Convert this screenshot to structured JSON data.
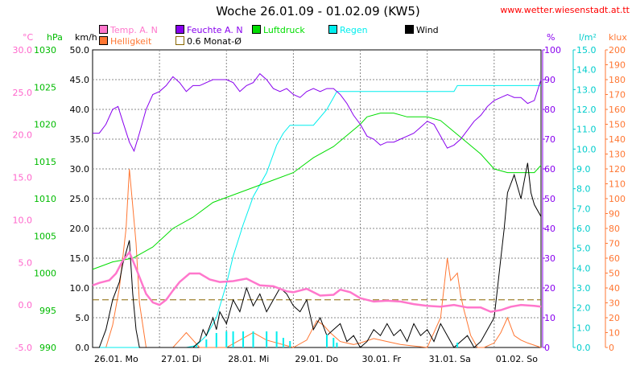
{
  "header": {
    "title": "Woche 26.01.09 - 01.02.09 (KW5)",
    "source": "www.wetter.wiesenstadt.at.tt"
  },
  "legend": [
    {
      "label": "Temp. A. N",
      "color": "#ff77cc",
      "border": "#000000"
    },
    {
      "label": "Feuchte A. N",
      "color": "#8800ee",
      "border": "#000000"
    },
    {
      "label": "Luftdruck",
      "color": "#00dd00",
      "border": "#000000"
    },
    {
      "label": "Regen",
      "color": "#00eeee",
      "border": "#000000"
    },
    {
      "label": "Wind",
      "color": "#000000",
      "border": "#000000"
    },
    {
      "label": "Helligkeit",
      "color": "#ff7733",
      "border": "#000000"
    },
    {
      "label": "0.6 Monat-Ø",
      "color": "#ffffff",
      "border": "#886600"
    }
  ],
  "chart_data": {
    "type": "line",
    "x_ticks": [
      "26.01. Mo",
      "27.01. Di",
      "28.01. Mi",
      "29.01. Do",
      "30.01. Fr",
      "31.01. Sa",
      "01.02. So"
    ],
    "axes": [
      {
        "unit": "°C",
        "color": "#ff66cc",
        "min": -5.0,
        "max": 30.0,
        "ticks": [
          "-5.0",
          "0.0",
          "5.0",
          "10.0",
          "15.0",
          "20.0",
          "25.0",
          "30.0"
        ],
        "tick_values": [
          -5,
          0,
          5,
          10,
          15,
          20,
          25,
          30
        ]
      },
      {
        "unit": "hPa",
        "color": "#00bb00",
        "min": 990,
        "max": 1030,
        "ticks": [
          "990",
          "995",
          "1000",
          "1005",
          "1010",
          "1015",
          "1020",
          "1025",
          "1030"
        ],
        "tick_values": [
          990,
          995,
          1000,
          1005,
          1010,
          1015,
          1020,
          1025,
          1030
        ]
      },
      {
        "unit": "km/h",
        "color": "#000000",
        "min": 0.0,
        "max": 50.0,
        "ticks": [
          "0.0",
          "5.0",
          "10.0",
          "15.0",
          "20.0",
          "25.0",
          "30.0",
          "35.0",
          "40.0",
          "45.0",
          "50.0"
        ],
        "tick_values": [
          0,
          5,
          10,
          15,
          20,
          25,
          30,
          35,
          40,
          45,
          50
        ]
      },
      {
        "unit": "%",
        "color": "#8800ee",
        "min": 0,
        "max": 100,
        "ticks": [
          "0",
          "10",
          "20",
          "30",
          "40",
          "50",
          "60",
          "70",
          "80",
          "90",
          "100"
        ],
        "tick_values": [
          0,
          10,
          20,
          30,
          40,
          50,
          60,
          70,
          80,
          90,
          100
        ]
      },
      {
        "unit": "l/m²",
        "color": "#00cccc",
        "min": 0.0,
        "max": 15.0,
        "ticks": [
          "0.0",
          "1.0",
          "2.0",
          "3.0",
          "4.0",
          "5.0",
          "6.0",
          "7.0",
          "8.0",
          "9.0",
          "10.0",
          "11.0",
          "12.0",
          "13.0",
          "14.0",
          "15.0"
        ],
        "tick_values": [
          0,
          1,
          2,
          3,
          4,
          5,
          6,
          7,
          8,
          9,
          10,
          11,
          12,
          13,
          14,
          15
        ]
      },
      {
        "unit": "klux",
        "color": "#ff7733",
        "min": 0,
        "max": 200,
        "ticks": [
          "0",
          "10",
          "20",
          "30",
          "40",
          "50",
          "60",
          "70",
          "80",
          "90",
          "100",
          "110",
          "120",
          "130",
          "140",
          "150",
          "160",
          "170",
          "180",
          "190",
          "200"
        ],
        "tick_values": [
          0,
          10,
          20,
          30,
          40,
          50,
          60,
          70,
          80,
          90,
          100,
          110,
          120,
          130,
          140,
          150,
          160,
          170,
          180,
          190,
          200
        ]
      }
    ],
    "series": [
      {
        "name": "Temp. A. N",
        "axis": "°C",
        "color": "#ff77cc",
        "x": [
          0,
          0.1,
          0.25,
          0.35,
          0.45,
          0.55,
          0.65,
          0.8,
          0.9,
          1.0,
          1.1,
          1.2,
          1.3,
          1.45,
          1.6,
          1.75,
          1.9,
          2.1,
          2.3,
          2.5,
          2.7,
          2.9,
          3.0,
          3.2,
          3.4,
          3.6,
          3.7,
          3.85,
          4.0,
          4.2,
          4.4,
          4.6,
          4.8,
          5.0,
          5.2,
          5.4,
          5.6,
          5.8,
          5.95,
          6.1,
          6.25,
          6.4,
          6.6,
          6.7
        ],
        "y": [
          2.3,
          2.6,
          2.9,
          3.7,
          5.2,
          6.2,
          4.3,
          1.3,
          0.3,
          0.0,
          0.6,
          1.7,
          2.7,
          3.7,
          3.7,
          3.0,
          2.7,
          2.8,
          3.1,
          2.3,
          2.2,
          1.6,
          1.5,
          1.9,
          1.1,
          1.2,
          1.8,
          1.5,
          0.8,
          0.4,
          0.5,
          0.4,
          0.1,
          -0.1,
          -0.2,
          0.0,
          -0.3,
          -0.3,
          -0.8,
          -0.6,
          -0.2,
          0.0,
          -0.1,
          -0.2
        ]
      },
      {
        "name": "Feuchte A. N",
        "axis": "%",
        "color": "#8800ee",
        "x": [
          0,
          0.1,
          0.2,
          0.3,
          0.38,
          0.45,
          0.55,
          0.62,
          0.7,
          0.8,
          0.9,
          1.0,
          1.1,
          1.2,
          1.3,
          1.4,
          1.5,
          1.6,
          1.7,
          1.8,
          1.9,
          2.0,
          2.1,
          2.2,
          2.3,
          2.4,
          2.5,
          2.6,
          2.7,
          2.8,
          2.9,
          3.0,
          3.1,
          3.2,
          3.3,
          3.4,
          3.5,
          3.6,
          3.7,
          3.8,
          3.9,
          4.0,
          4.1,
          4.2,
          4.3,
          4.4,
          4.5,
          4.6,
          4.7,
          4.8,
          4.9,
          5.0,
          5.1,
          5.2,
          5.3,
          5.4,
          5.5,
          5.6,
          5.7,
          5.8,
          5.9,
          6.0,
          6.1,
          6.2,
          6.3,
          6.4,
          6.5,
          6.6,
          6.7
        ],
        "y": [
          72,
          72,
          75,
          80,
          81,
          76,
          69,
          66,
          72,
          80,
          85,
          86,
          88,
          91,
          89,
          86,
          88,
          88,
          89,
          90,
          90,
          90,
          89,
          86,
          88,
          89,
          92,
          90,
          87,
          86,
          87,
          85,
          84,
          86,
          87,
          86,
          87,
          87,
          85,
          82,
          78,
          75,
          71,
          70,
          68,
          69,
          69,
          70,
          71,
          72,
          74,
          76,
          75,
          71,
          67,
          68,
          70,
          73,
          76,
          78,
          81,
          83,
          84,
          85,
          84,
          84,
          82,
          83,
          90
        ]
      },
      {
        "name": "Luftdruck",
        "axis": "hPa",
        "color": "#00dd00",
        "x": [
          0,
          0.3,
          0.6,
          0.9,
          1.2,
          1.5,
          1.8,
          2.1,
          2.4,
          2.7,
          3.0,
          3.3,
          3.6,
          3.8,
          4.0,
          4.1,
          4.3,
          4.5,
          4.7,
          4.8,
          5.0,
          5.2,
          5.4,
          5.6,
          5.8,
          6.0,
          6.2,
          6.4,
          6.6,
          6.7
        ],
        "y": [
          1000.5,
          1001.5,
          1002,
          1003.5,
          1006,
          1007.5,
          1009.5,
          1010.5,
          1011.5,
          1012.5,
          1013.5,
          1015.5,
          1017,
          1018.5,
          1020,
          1021,
          1021.5,
          1021.5,
          1021,
          1021,
          1021,
          1020.5,
          1019,
          1017.5,
          1016,
          1014,
          1013.5,
          1013.5,
          1013.5,
          1014.5
        ]
      },
      {
        "name": "Regen",
        "axis": "l/m²",
        "color": "#00eeee",
        "x": [
          0,
          1.4,
          1.55,
          1.7,
          1.85,
          2.0,
          2.1,
          2.25,
          2.4,
          2.6,
          2.75,
          2.85,
          2.95,
          3.0,
          3.3,
          3.5,
          3.6,
          3.65,
          5.4,
          5.45,
          6.7
        ],
        "y": [
          0,
          0,
          0.1,
          0.6,
          1.5,
          3.2,
          4.6,
          6.2,
          7.6,
          8.8,
          10.2,
          10.8,
          11.2,
          11.2,
          11.2,
          12.0,
          12.6,
          12.9,
          12.9,
          13.2,
          13.2
        ]
      },
      {
        "name": "Wind",
        "axis": "km/h",
        "color": "#000000",
        "x": [
          0,
          0.1,
          0.2,
          0.3,
          0.4,
          0.45,
          0.5,
          0.55,
          0.6,
          0.65,
          0.7,
          0.8,
          0.9,
          1.0,
          1.1,
          1.2,
          1.3,
          1.4,
          1.5,
          1.6,
          1.65,
          1.7,
          1.8,
          1.85,
          1.9,
          2.0,
          2.1,
          2.2,
          2.3,
          2.4,
          2.5,
          2.6,
          2.7,
          2.8,
          2.9,
          3.0,
          3.1,
          3.2,
          3.3,
          3.4,
          3.5,
          3.6,
          3.7,
          3.8,
          3.9,
          4.0,
          4.1,
          4.2,
          4.3,
          4.4,
          4.5,
          4.6,
          4.7,
          4.8,
          4.9,
          5.0,
          5.1,
          5.2,
          5.3,
          5.4,
          5.5,
          5.6,
          5.7,
          5.8,
          5.9,
          6.0,
          6.05,
          6.1,
          6.15,
          6.2,
          6.3,
          6.35,
          6.4,
          6.45,
          6.5,
          6.55,
          6.6,
          6.7
        ],
        "y": [
          0,
          0,
          3,
          8,
          11,
          14,
          16,
          18,
          9,
          3,
          0,
          0,
          0,
          0,
          0,
          0,
          0,
          0,
          0,
          1,
          3,
          2,
          5,
          3,
          6,
          4,
          8,
          6,
          10,
          7,
          9,
          6,
          8,
          10,
          9,
          7,
          6,
          8,
          3,
          5,
          2,
          3,
          4,
          1,
          2,
          0,
          1,
          3,
          2,
          4,
          2,
          3,
          1,
          4,
          2,
          3,
          1,
          4,
          2,
          0,
          1,
          2,
          0,
          1,
          3,
          5,
          10,
          15,
          20,
          26,
          29,
          27,
          25,
          28,
          31,
          26,
          24,
          22
        ]
      },
      {
        "name": "Helligkeit",
        "axis": "klux",
        "color": "#ff7733",
        "x": [
          0,
          0.2,
          0.3,
          0.4,
          0.5,
          0.55,
          0.6,
          0.65,
          0.7,
          0.8,
          1.0,
          1.2,
          1.3,
          1.4,
          1.5,
          1.6,
          2.0,
          2.2,
          2.4,
          2.6,
          3.0,
          3.2,
          3.35,
          3.45,
          3.55,
          3.7,
          3.9,
          4.0,
          4.2,
          4.4,
          4.6,
          5.0,
          5.2,
          5.3,
          5.35,
          5.45,
          5.5,
          5.55,
          5.65,
          5.75,
          5.85,
          6.0,
          6.1,
          6.2,
          6.3,
          6.4,
          6.5,
          6.7
        ],
        "y": [
          0,
          0,
          15,
          40,
          80,
          120,
          95,
          70,
          30,
          0,
          0,
          0,
          5,
          10,
          5,
          0,
          0,
          5,
          10,
          5,
          0,
          5,
          18,
          15,
          10,
          4,
          2,
          3,
          6,
          4,
          2,
          0,
          20,
          60,
          45,
          50,
          35,
          25,
          8,
          0,
          0,
          3,
          10,
          20,
          8,
          5,
          3,
          0
        ]
      }
    ],
    "reference_line": {
      "name": "0.6 Monat-Ø",
      "axis": "°C",
      "value": 0.6,
      "color": "#886600"
    },
    "grid": {
      "vertical": true,
      "horizontal": true,
      "style": "dotted"
    },
    "legend_position": "top"
  }
}
